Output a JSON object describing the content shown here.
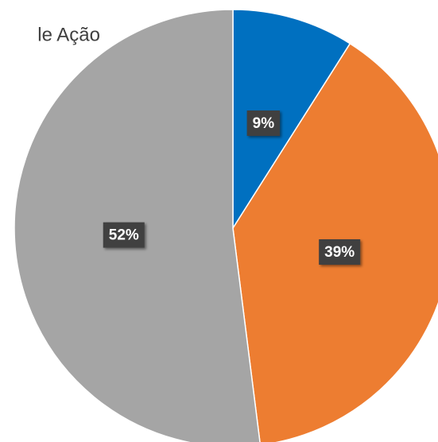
{
  "chart_data": {
    "type": "pie",
    "title": "le Ação",
    "values": [
      9,
      39,
      52
    ],
    "value_labels": [
      "9%",
      "39%",
      "52%"
    ],
    "colors": [
      "#0070c0",
      "#ed7d31",
      "#a5a5a5"
    ]
  }
}
